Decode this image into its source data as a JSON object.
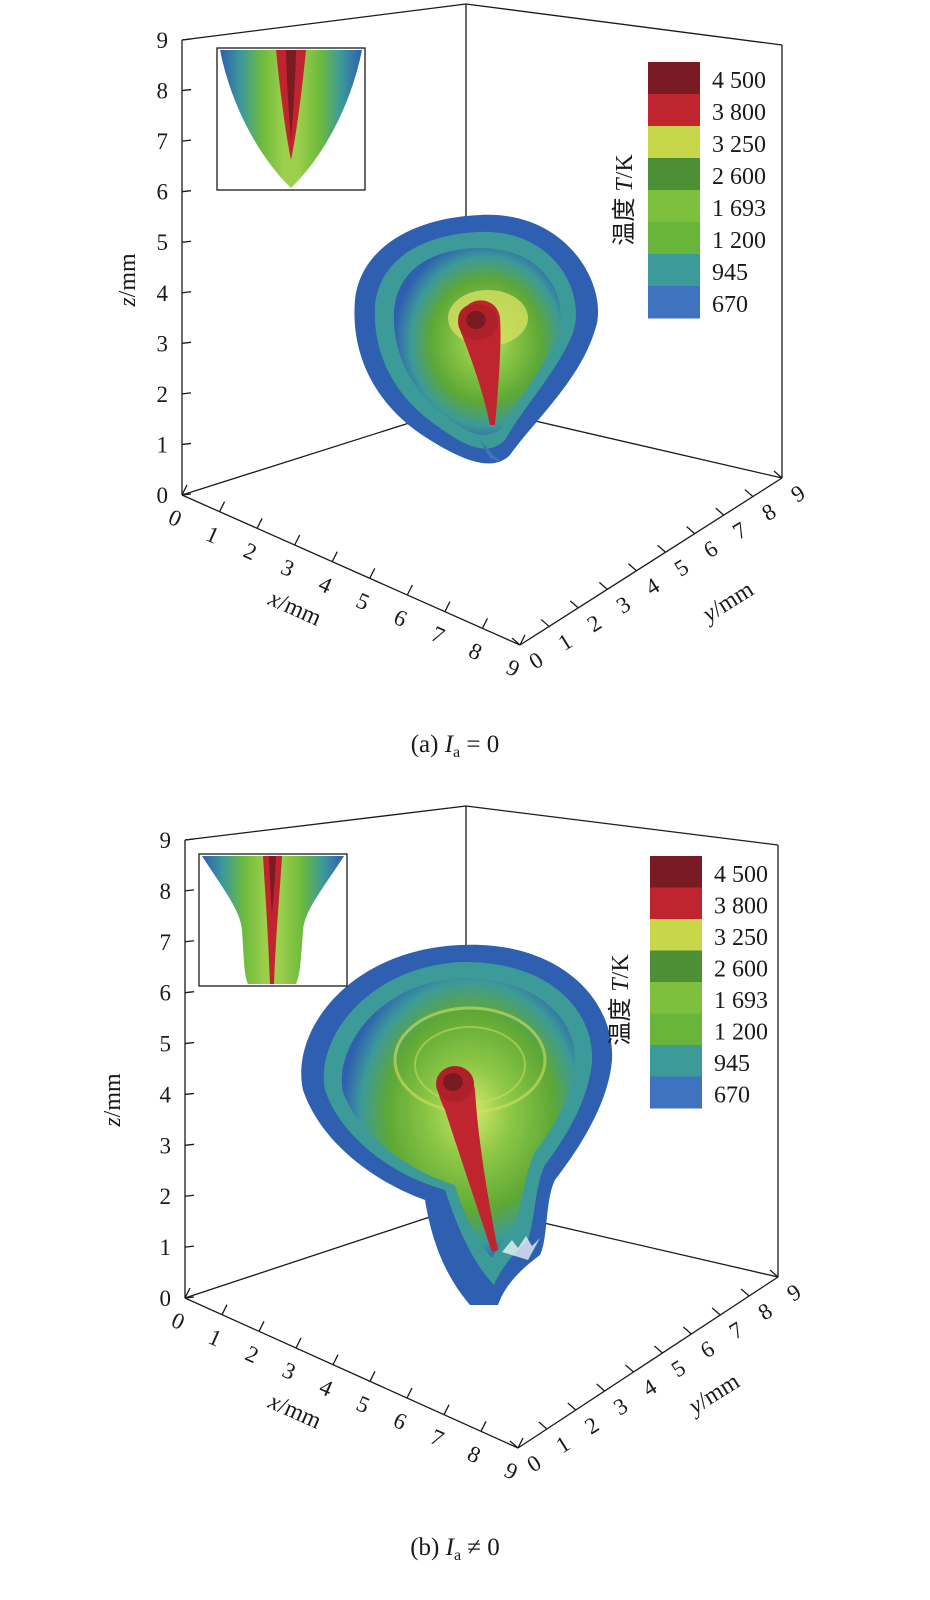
{
  "chart_data": [
    {
      "type": "surface3d",
      "panel": "a",
      "caption": {
        "prefix": "(a) ",
        "var": "I",
        "sub": "a",
        "rel": " = 0"
      },
      "axes": {
        "x": {
          "label_var": "x",
          "label_unit": "/mm",
          "ticks": [
            "0",
            "1",
            "2",
            "3",
            "4",
            "5",
            "6",
            "7",
            "8",
            "9"
          ],
          "range": [
            0,
            9
          ]
        },
        "y": {
          "label_var": "y",
          "label_unit": "/mm",
          "ticks": [
            "0",
            "1",
            "2",
            "3",
            "4",
            "5",
            "6",
            "7",
            "8",
            "9"
          ],
          "range": [
            0,
            9
          ]
        },
        "z": {
          "label_var": "z",
          "label_unit": "/mm",
          "ticks": [
            "0",
            "1",
            "2",
            "3",
            "4",
            "5",
            "6",
            "7",
            "8",
            "9"
          ],
          "range": [
            0,
            9
          ]
        }
      },
      "colorbar": {
        "title_cn": "温度",
        "title_var": "T",
        "title_unit": "/K",
        "levels": [
          "4 500",
          "3 800",
          "3 250",
          "2 600",
          "1 693",
          "1 200",
          "945",
          "670"
        ],
        "colors": [
          "#7a1a22",
          "#c0242e",
          "#c8d64a",
          "#4c8f34",
          "#7fbf3e",
          "#69b43a",
          "#3c9a98",
          "#3f73c0"
        ]
      }
    },
    {
      "type": "surface3d",
      "panel": "b",
      "caption": {
        "prefix": "(b) ",
        "var": "I",
        "sub": "a",
        "rel": " ≠ 0"
      },
      "axes": {
        "x": {
          "label_var": "x",
          "label_unit": "/mm",
          "ticks": [
            "0",
            "1",
            "2",
            "3",
            "4",
            "5",
            "6",
            "7",
            "8",
            "9"
          ],
          "range": [
            0,
            9
          ]
        },
        "y": {
          "label_var": "y",
          "label_unit": "/mm",
          "ticks": [
            "0",
            "1",
            "2",
            "3",
            "4",
            "5",
            "6",
            "7",
            "8",
            "9"
          ],
          "range": [
            0,
            9
          ]
        },
        "z": {
          "label_var": "z",
          "label_unit": "/mm",
          "ticks": [
            "0",
            "1",
            "2",
            "3",
            "4",
            "5",
            "6",
            "7",
            "8",
            "9"
          ],
          "range": [
            0,
            9
          ]
        }
      },
      "colorbar": {
        "title_cn": "温度",
        "title_var": "T",
        "title_unit": "/K",
        "levels": [
          "4 500",
          "3 800",
          "3 250",
          "2 600",
          "1 693",
          "1 200",
          "945",
          "670"
        ],
        "colors": [
          "#7a1a22",
          "#c0242e",
          "#c8d64a",
          "#4c8f34",
          "#7fbf3e",
          "#69b43a",
          "#3c9a98",
          "#3f73c0"
        ]
      }
    }
  ]
}
